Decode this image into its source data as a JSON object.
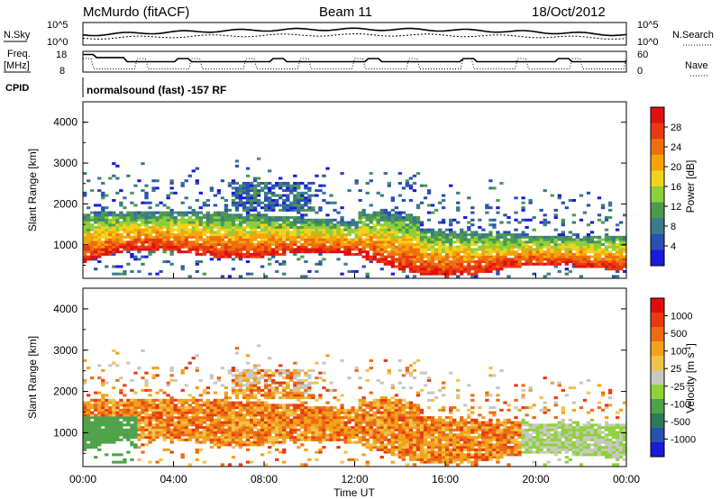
{
  "header": {
    "station": "McMurdo (fitACF)",
    "beam": "Beam 11",
    "date": "18/Oct/2012"
  },
  "noise_panel": {
    "left_label": "N.Sky",
    "left_ticks": [
      "10^5",
      "10^0"
    ],
    "right_label": "N.Search",
    "right_ticks": [
      "10^5",
      "10^0"
    ]
  },
  "freq_panel": {
    "left_label_line1": "Freq.",
    "left_label_line2": "[MHz]",
    "left_ticks": [
      "18",
      "8"
    ],
    "right_label": "Nave",
    "right_ticks": [
      "60",
      "0"
    ]
  },
  "cpid": {
    "label": "CPID",
    "text": "normalsound (fast) -157 RF"
  },
  "colors": {
    "power_scale": [
      "#1a1adc",
      "#2a50b0",
      "#3a7a8a",
      "#4c9a4c",
      "#8ccf3a",
      "#f2d21a",
      "#f5a30a",
      "#ef6f0c",
      "#e83a10",
      "#e01010"
    ],
    "velocity_scale": [
      "#1a1adc",
      "#2a50b0",
      "#2c7a5a",
      "#4fa24a",
      "#8fd23a",
      "#c8c8c0",
      "#f0c24a",
      "#f1a21a",
      "#ec6a14",
      "#e83a10",
      "#e00c0c"
    ],
    "frame": "#000000"
  },
  "chart_data": [
    {
      "type": "heatmap",
      "title": "Power",
      "ylabel": "Slant Range [km]",
      "xlabel": "",
      "ylim": [
        180,
        4500
      ],
      "yticks": [
        "1000",
        "2000",
        "3000",
        "4000"
      ],
      "colorbar_label": "Power [dB]",
      "colorbar_ticks": [
        "28",
        "24",
        "20",
        "16",
        "12",
        "8",
        "4"
      ],
      "colorbar_range": [
        0,
        32
      ]
    },
    {
      "type": "heatmap",
      "title": "Velocity",
      "ylabel": "Slant Range [km]",
      "xlabel": "Time UT",
      "ylim": [
        180,
        4500
      ],
      "yticks": [
        "1000",
        "2000",
        "3000",
        "4000"
      ],
      "xticks": [
        "00:00",
        "04:00",
        "08:00",
        "12:00",
        "16:00",
        "20:00",
        "00:00"
      ],
      "colorbar_label": "Velocity [m s^-1]",
      "colorbar_ticks": [
        "1000",
        "500",
        "100",
        "25",
        "-25",
        "-100",
        "-500",
        "-1000"
      ]
    }
  ]
}
